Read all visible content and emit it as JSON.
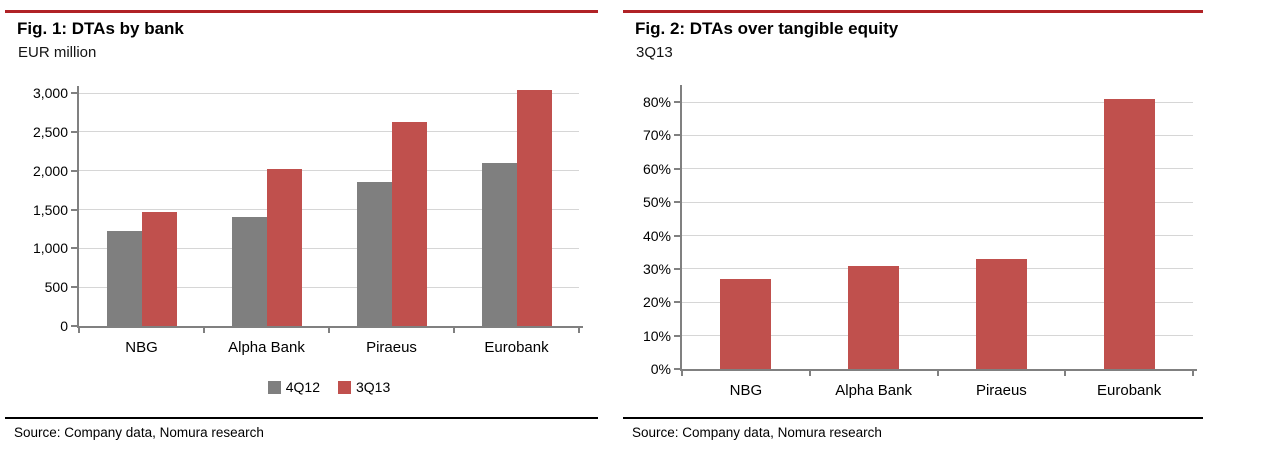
{
  "colors": {
    "rule_red": "#b02226",
    "rule_black": "#000000",
    "series_gray": "#7f7f7f",
    "series_red": "#c0504d"
  },
  "chart_data": [
    {
      "type": "bar",
      "title": "Fig. 1: DTAs by bank",
      "subtitle": "EUR million",
      "source": "Source: Company data, Nomura research",
      "categories": [
        "NBG",
        "Alpha Bank",
        "Piraeus",
        "Eurobank"
      ],
      "series": [
        {
          "name": "4Q12",
          "color": "#7f7f7f",
          "values": [
            1220,
            1400,
            1860,
            2100
          ]
        },
        {
          "name": "3Q13",
          "color": "#c0504d",
          "values": [
            1470,
            2020,
            2630,
            3040
          ]
        }
      ],
      "ylim": [
        0,
        3000
      ],
      "ytick_step": 500,
      "ytick_labels": [
        "0",
        "500",
        "1,000",
        "1,500",
        "2,000",
        "2,500",
        "3,000"
      ],
      "grid": true,
      "legend_position": "bottom"
    },
    {
      "type": "bar",
      "title": "Fig. 2: DTAs over tangible equity",
      "subtitle": "3Q13",
      "source": "Source: Company data, Nomura research",
      "categories": [
        "NBG",
        "Alpha Bank",
        "Piraeus",
        "Eurobank"
      ],
      "series": [
        {
          "name": "3Q13",
          "color": "#c0504d",
          "values": [
            27,
            31,
            33,
            81
          ]
        }
      ],
      "ylim": [
        0,
        80
      ],
      "ytick_step": 10,
      "ytick_labels": [
        "0%",
        "10%",
        "20%",
        "30%",
        "40%",
        "50%",
        "60%",
        "70%",
        "80%"
      ],
      "grid": true,
      "legend_position": "none"
    }
  ]
}
